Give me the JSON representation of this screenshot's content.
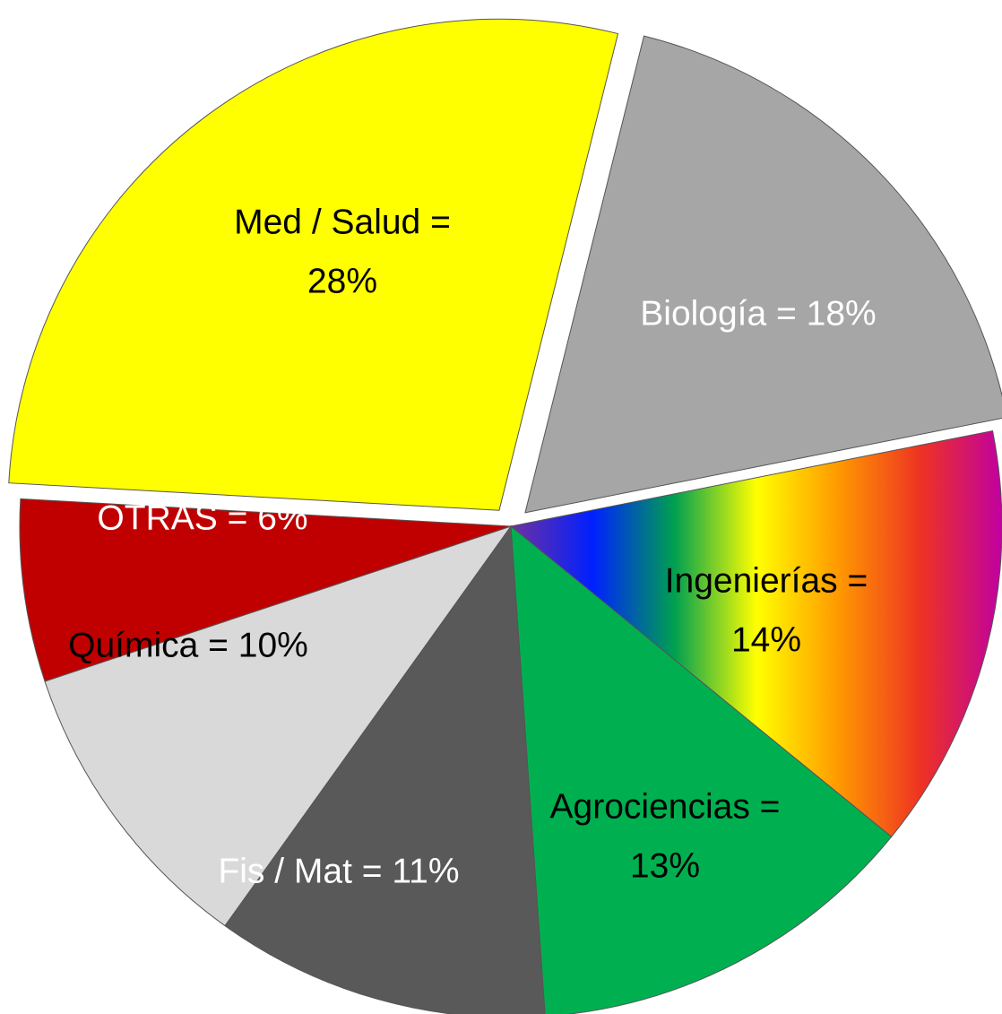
{
  "chart_data": {
    "type": "pie",
    "values": [
      18,
      14,
      13,
      11,
      10,
      6,
      28
    ],
    "value_labels": [
      [
        "Biología = 18%"
      ],
      [
        "Ingenierías =",
        "14%"
      ],
      [
        "Agrociencias =",
        "13%"
      ],
      [
        "Fis / Mat = 11%"
      ],
      [
        "Química = 10%"
      ],
      [
        "OTRAS = 6%"
      ],
      [
        "Med / Salud =",
        "28%"
      ]
    ],
    "colors": [
      "#a6a6a6",
      [
        "#7030a0",
        "#0020ff",
        "#00a050",
        "#ffff00",
        "#ff9900",
        "#ee3322",
        "#c000a0"
      ],
      "#00b050",
      "#595959",
      "#d9d9d9",
      "#c00000",
      "#ffff00"
    ],
    "label_colors": [
      "#ffffff",
      "#000000",
      "#000000",
      "#ffffff",
      "#000000",
      "#ffffff",
      "#000000"
    ],
    "exploded": [
      true,
      false,
      false,
      false,
      false,
      false,
      true
    ]
  }
}
